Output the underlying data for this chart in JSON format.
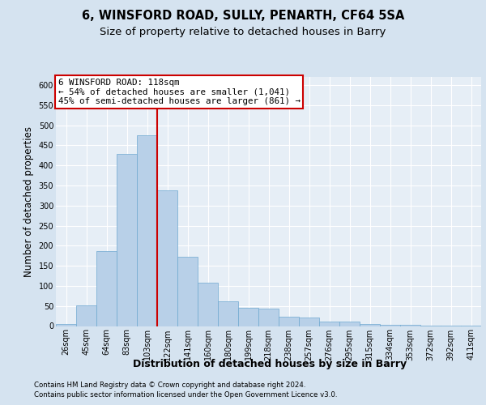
{
  "title1": "6, WINSFORD ROAD, SULLY, PENARTH, CF64 5SA",
  "title2": "Size of property relative to detached houses in Barry",
  "xlabel": "Distribution of detached houses by size in Barry",
  "ylabel": "Number of detached properties",
  "categories": [
    "26sqm",
    "45sqm",
    "64sqm",
    "83sqm",
    "103sqm",
    "122sqm",
    "141sqm",
    "160sqm",
    "180sqm",
    "199sqm",
    "218sqm",
    "238sqm",
    "257sqm",
    "276sqm",
    "295sqm",
    "315sqm",
    "334sqm",
    "353sqm",
    "372sqm",
    "392sqm",
    "411sqm"
  ],
  "values": [
    5,
    51,
    187,
    428,
    475,
    338,
    173,
    107,
    61,
    46,
    44,
    23,
    22,
    11,
    12,
    5,
    4,
    3,
    2,
    1,
    2
  ],
  "bar_color": "#b8d0e8",
  "bar_edge_color": "#6ea8d0",
  "bar_width": 1.0,
  "vline_index": 4.5,
  "vline_color": "#cc0000",
  "annotation_line1": "6 WINSFORD ROAD: 118sqm",
  "annotation_line2": "← 54% of detached houses are smaller (1,041)",
  "annotation_line3": "45% of semi-detached houses are larger (861) →",
  "annotation_box_facecolor": "#ffffff",
  "annotation_box_edgecolor": "#cc0000",
  "ylim": [
    0,
    620
  ],
  "yticks": [
    0,
    50,
    100,
    150,
    200,
    250,
    300,
    350,
    400,
    450,
    500,
    550,
    600
  ],
  "footnote1": "Contains HM Land Registry data © Crown copyright and database right 2024.",
  "footnote2": "Contains public sector information licensed under the Open Government Licence v3.0.",
  "fig_facecolor": "#d5e3f0",
  "plot_facecolor": "#e6eef6",
  "title1_fontsize": 10.5,
  "title2_fontsize": 9.5,
  "tick_fontsize": 7,
  "ylabel_fontsize": 8.5,
  "xlabel_fontsize": 9,
  "annot_fontsize": 7.8,
  "footnote_fontsize": 6.2
}
